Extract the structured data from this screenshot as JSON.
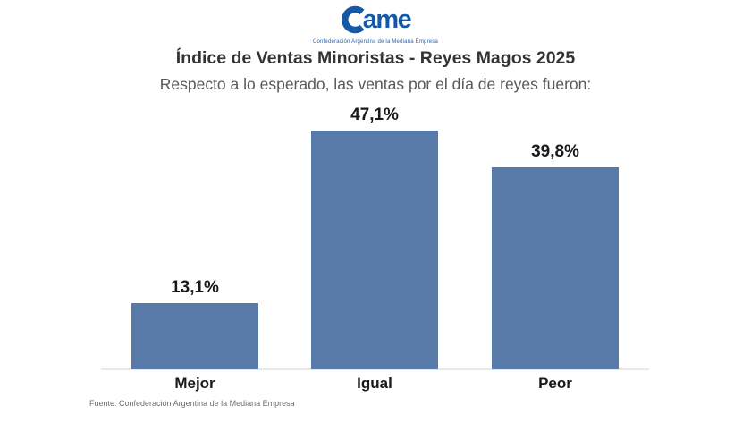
{
  "logo": {
    "name": "CAME",
    "wordmark": "ame",
    "tagline": "Confederación Argentina de la Mediana Empresa"
  },
  "header": {
    "title": "Índice de Ventas Minoristas - Reyes Magos 2025",
    "subtitle": "Respecto a lo esperado, las ventas por el día de reyes fueron:"
  },
  "chart_data": {
    "type": "bar",
    "categories": [
      "Mejor",
      "Igual",
      "Peor"
    ],
    "values": [
      13.1,
      47.1,
      39.8
    ],
    "value_labels": [
      "13,1%",
      "47,1%",
      "39,8%"
    ],
    "unit": "%",
    "title": "Índice de Ventas Minoristas - Reyes Magos 2025",
    "subtitle": "Respecto a lo esperado, las ventas por el día de reyes fueron:",
    "xlabel": "",
    "ylabel": "",
    "ylim": [
      0,
      50
    ],
    "grid": false,
    "legend": false,
    "bar_color": "#587aa9"
  },
  "footer": {
    "source": "Fuente: Confederación Argentina de la Mediana Empresa"
  },
  "colors": {
    "logo_blue": "#1558a7",
    "bar": "#587aa9",
    "axis_line": "#e9e9e9",
    "title_text": "#333333",
    "subtitle_text": "#595959",
    "label_text": "#1a1a1a",
    "source_text": "#6e6e6e"
  }
}
